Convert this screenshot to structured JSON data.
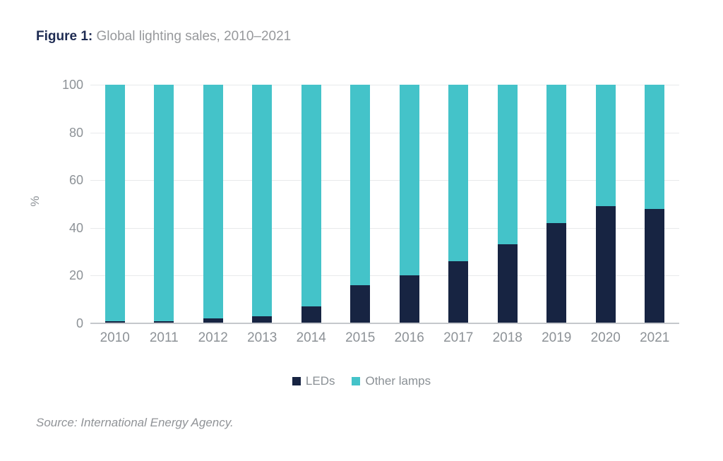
{
  "figure": {
    "label": "Figure 1:",
    "title": "Global lighting sales, 2010–2021"
  },
  "chart_data": {
    "type": "bar",
    "stacked": true,
    "title": "Global lighting sales, 2010–2021",
    "categories": [
      "2010",
      "2011",
      "2012",
      "2013",
      "2014",
      "2015",
      "2016",
      "2017",
      "2018",
      "2019",
      "2020",
      "2021"
    ],
    "series": [
      {
        "name": "LEDs",
        "color": "#172442",
        "values": [
          1,
          1,
          2,
          3,
          7,
          16,
          20,
          26,
          33,
          42,
          49,
          48
        ]
      },
      {
        "name": "Other lamps",
        "color": "#44C3C9",
        "values": [
          99,
          99,
          98,
          97,
          93,
          84,
          80,
          74,
          67,
          58,
          51,
          52
        ]
      }
    ],
    "xlabel": "",
    "ylabel": "%",
    "ylim": [
      0,
      100
    ],
    "yticks": [
      0,
      20,
      40,
      60,
      80,
      100
    ],
    "grid": true,
    "legend_position": "bottom"
  },
  "source": "Source: International Energy Agency.",
  "colors": {
    "figure_label": "#1E2B52",
    "figure_title": "#97999C",
    "axis_text": "#8D9297",
    "legend_text": "#8A9095",
    "source_text": "#909397",
    "gridline": "#E8E9EB",
    "baseline": "#C5C8CC",
    "background": "#FFFFFF"
  }
}
